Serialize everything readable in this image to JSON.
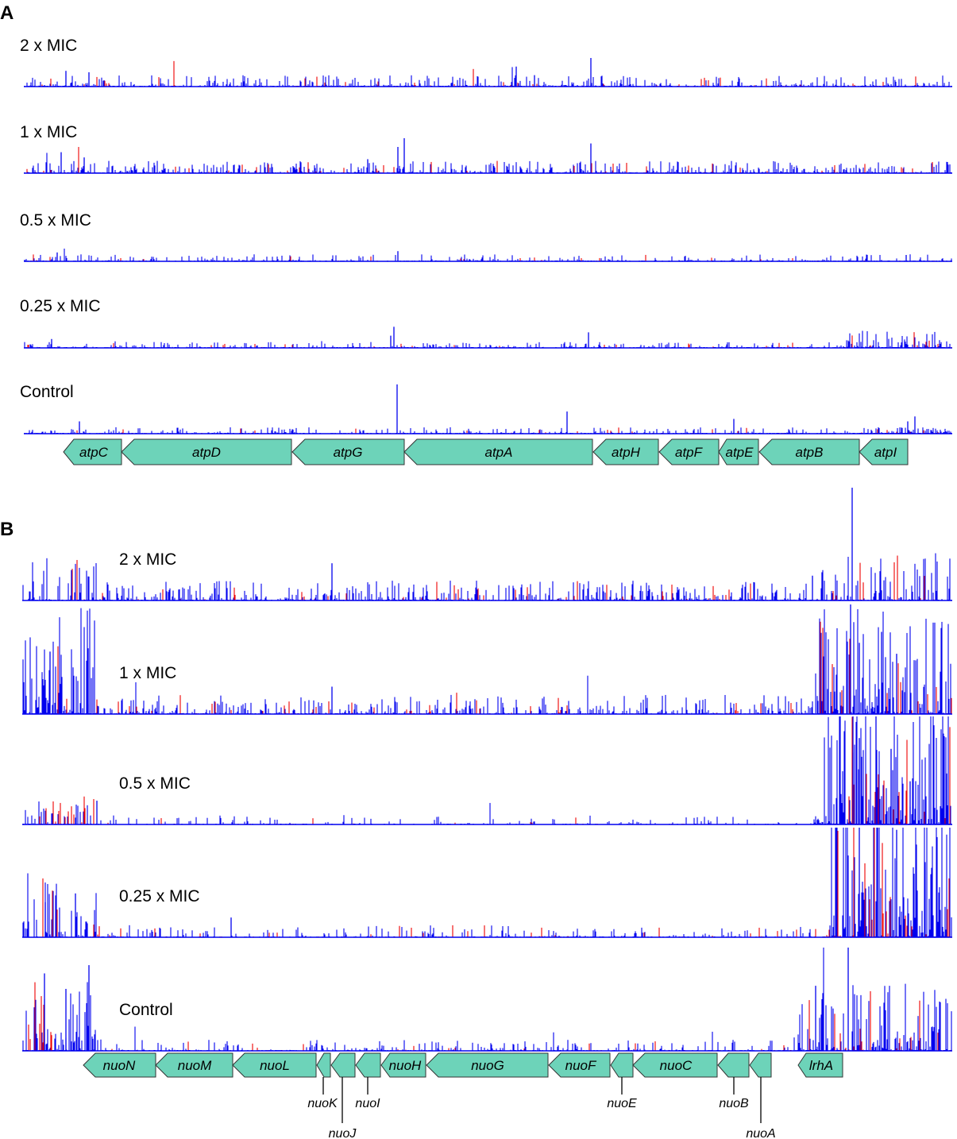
{
  "panels": [
    {
      "letter": "A",
      "tracks": [
        {
          "label": "2 x MIC"
        },
        {
          "label": "1 x MIC"
        },
        {
          "label": "0.5 x MIC"
        },
        {
          "label": "0.25 x MIC"
        },
        {
          "label": "Control"
        }
      ],
      "genes": [
        {
          "name": "atpC",
          "strand": "-"
        },
        {
          "name": "atpD",
          "strand": "-"
        },
        {
          "name": "atpG",
          "strand": "-"
        },
        {
          "name": "atpA",
          "strand": "-"
        },
        {
          "name": "atpH",
          "strand": "-"
        },
        {
          "name": "atpF",
          "strand": "-"
        },
        {
          "name": "atpE",
          "strand": "-"
        },
        {
          "name": "atpB",
          "strand": "-"
        },
        {
          "name": "atpI",
          "strand": "-"
        }
      ]
    },
    {
      "letter": "B",
      "tracks": [
        {
          "label": "2 x MIC"
        },
        {
          "label": "1 x MIC"
        },
        {
          "label": "0.5 x MIC"
        },
        {
          "label": "0.25 x MIC"
        },
        {
          "label": "Control"
        }
      ],
      "genes": [
        {
          "name": "nuoN",
          "strand": "-"
        },
        {
          "name": "nuoM",
          "strand": "-"
        },
        {
          "name": "nuoL",
          "strand": "-"
        },
        {
          "name": "nuoK",
          "strand": "-"
        },
        {
          "name": "nuoJ",
          "strand": "-"
        },
        {
          "name": "nuoI",
          "strand": "-"
        },
        {
          "name": "nuoH",
          "strand": "-"
        },
        {
          "name": "nuoG",
          "strand": "-"
        },
        {
          "name": "nuoF",
          "strand": "-"
        },
        {
          "name": "nuoE",
          "strand": "-"
        },
        {
          "name": "nuoC",
          "strand": "-"
        },
        {
          "name": "nuoB",
          "strand": "-"
        },
        {
          "name": "nuoA",
          "strand": "-"
        },
        {
          "name": "lrhA",
          "strand": "-"
        }
      ]
    }
  ],
  "colors": {
    "forward_insertions": "#0000ee",
    "reverse_insertions": "#ee0000",
    "gene": "#6dd3b9",
    "gene_outline": "#333333"
  }
}
